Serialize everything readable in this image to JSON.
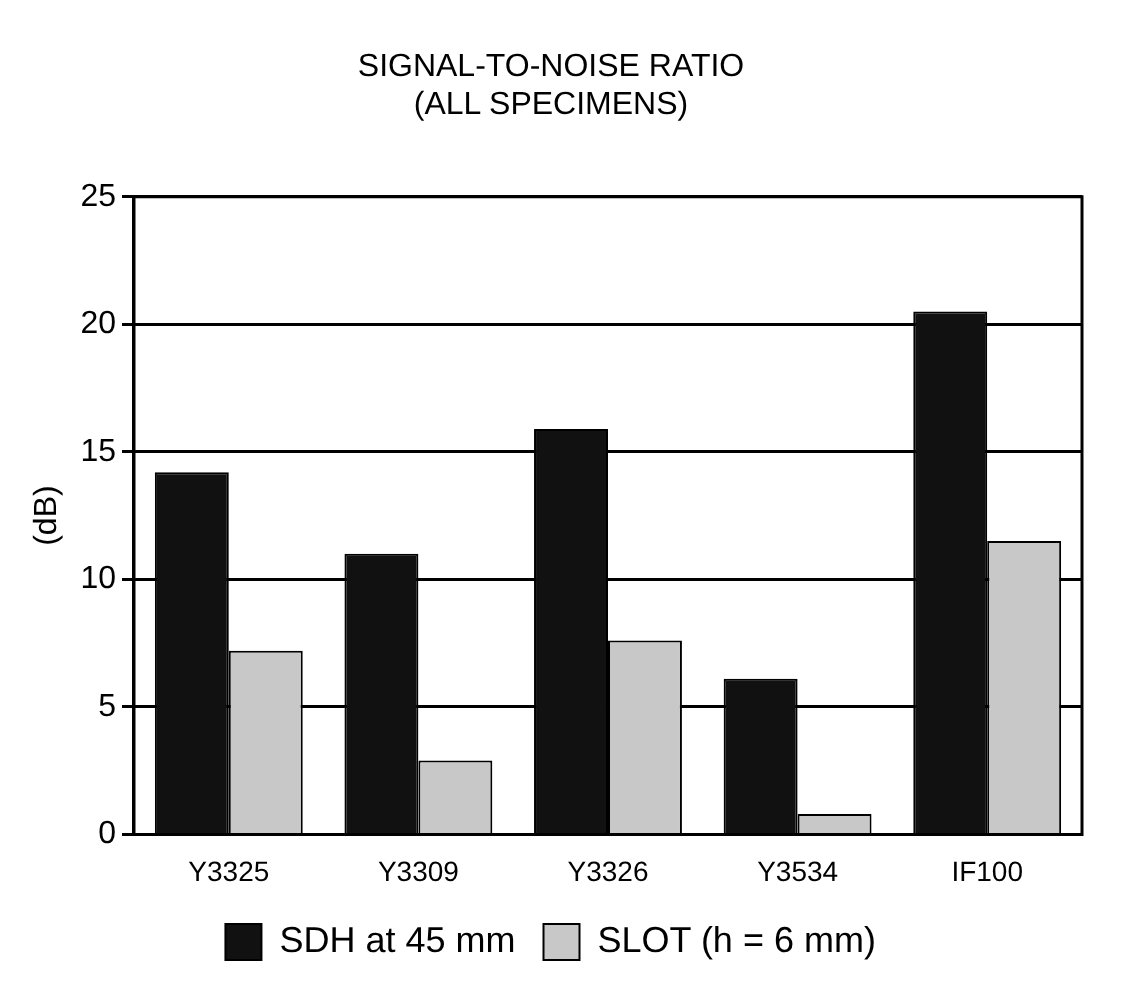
{
  "chart_data": {
    "type": "bar",
    "title": "SIGNAL-TO-NOISE RATIO",
    "subtitle": "(ALL SPECIMENS)",
    "ylabel": "(dB)",
    "categories": [
      "Y3325",
      "Y3309",
      "Y3326",
      "Y3534",
      "IF100"
    ],
    "series": [
      {
        "name": "SDH at 45 mm",
        "color": "#111111",
        "values": [
          14.2,
          11.0,
          15.9,
          6.1,
          20.5
        ]
      },
      {
        "name": "SLOT (h = 6 mm)",
        "color": "#c8c8c8",
        "values": [
          7.2,
          2.9,
          7.6,
          0.8,
          11.5
        ]
      }
    ],
    "ylim": [
      0,
      25
    ],
    "yticks": [
      0,
      5,
      10,
      15,
      20,
      25
    ],
    "grid": "y",
    "legend": "bottom"
  }
}
